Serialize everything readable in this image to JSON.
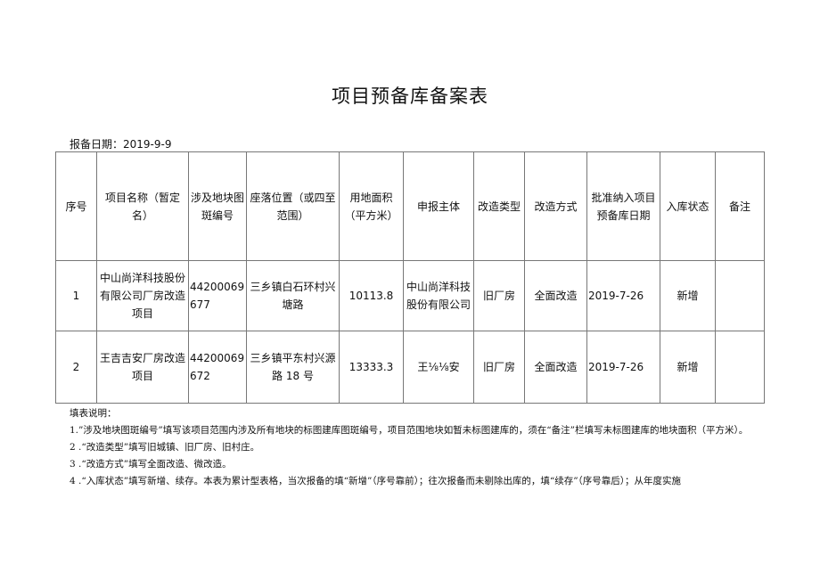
{
  "title": "项目预备库备案表",
  "report_date": "报备日期：2019-9-9",
  "table": {
    "headers": [
      "序号",
      "项目名称（暂定名）",
      "涉及地块图斑编号",
      "座落位置（或四至范围）",
      "用地面积（平方米）",
      "申报主体",
      "改造类型",
      "改造方式",
      "批准纳入项目预备库日期",
      "入库状态",
      "备注"
    ],
    "rows": [
      [
        "1",
        "中山尚洋科技股份有限公司厂房改造项目",
        "44200069 677",
        "三乡镇白石环村兴塘路",
        "10113.8",
        "中山尚洋科技股份有限公司",
        "旧厂房",
        "全面改造",
        "2019-7-26",
        "新增",
        ""
      ],
      [
        "2",
        "王吉吉安厂房改造项目",
        "44200069 672",
        "三乡镇平东村兴源路 18 号",
        "13333.3",
        "王⅛⅛安",
        "旧厂房",
        "全面改造",
        "2019-7-26",
        "新增",
        ""
      ]
    ]
  },
  "notes": {
    "heading": "填表说明：",
    "items": [
      "1.”涉及地块图斑编号”填写该项目范围内涉及所有地块的标图建库图斑编号，项目范围地块如暂未标图建库的，须在“备注”栏填写未标图建库的地块面积（平方米）。",
      "2 .“改造类型”填写旧城镇、旧厂房、旧村庄。",
      "3 .“改造方式”填写全面改造、微改造。",
      "4 .“入库状态”填写新增、续存。本表为累计型表格，当次报备的填“新增”（序号靠前）；往次报备而未剔除出库的，填“续存”（序号靠后）；从年度实施"
    ]
  }
}
